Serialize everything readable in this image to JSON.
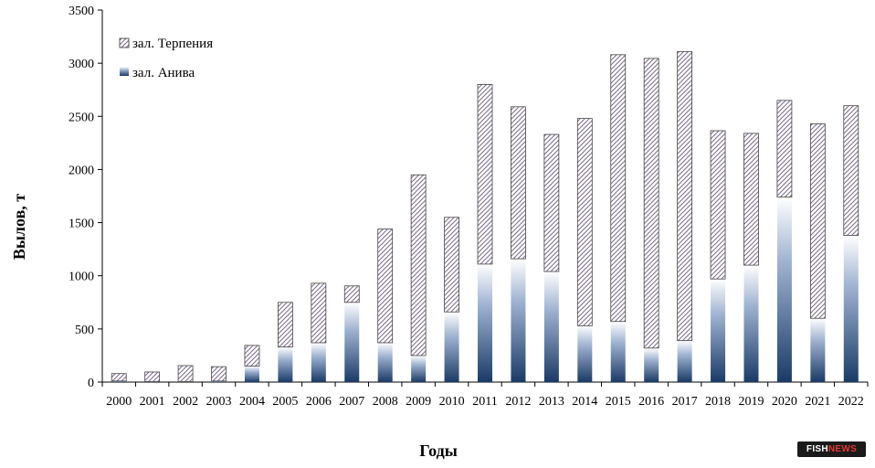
{
  "chart_data": {
    "type": "bar",
    "stacked": true,
    "categories": [
      "2000",
      "2001",
      "2002",
      "2003",
      "2004",
      "2005",
      "2006",
      "2007",
      "2008",
      "2009",
      "2010",
      "2011",
      "2012",
      "2013",
      "2014",
      "2015",
      "2016",
      "2017",
      "2018",
      "2019",
      "2020",
      "2021",
      "2022"
    ],
    "series": [
      {
        "name": "зал. Анива",
        "values": [
          10,
          5,
          5,
          10,
          150,
          330,
          370,
          750,
          370,
          250,
          660,
          1110,
          1160,
          1040,
          530,
          570,
          320,
          390,
          970,
          1100,
          1740,
          600,
          1380
        ],
        "color": "#2b4d78"
      },
      {
        "name": "зал. Терпения",
        "values": [
          70,
          90,
          150,
          135,
          195,
          420,
          560,
          155,
          1070,
          1700,
          890,
          1690,
          1430,
          1290,
          1950,
          2510,
          2725,
          2720,
          1395,
          1240,
          910,
          1830,
          1220
        ],
        "color": "#7b6a8a"
      }
    ],
    "xlabel": "Годы",
    "ylabel": "Вылов, т",
    "ylim": [
      0,
      3500
    ],
    "yticks": [
      0,
      500,
      1000,
      1500,
      2000,
      2500,
      3000,
      3500
    ],
    "grid": false,
    "legend": "top-left"
  },
  "watermark": {
    "part1": "FISH",
    "part2": "NEWS"
  }
}
